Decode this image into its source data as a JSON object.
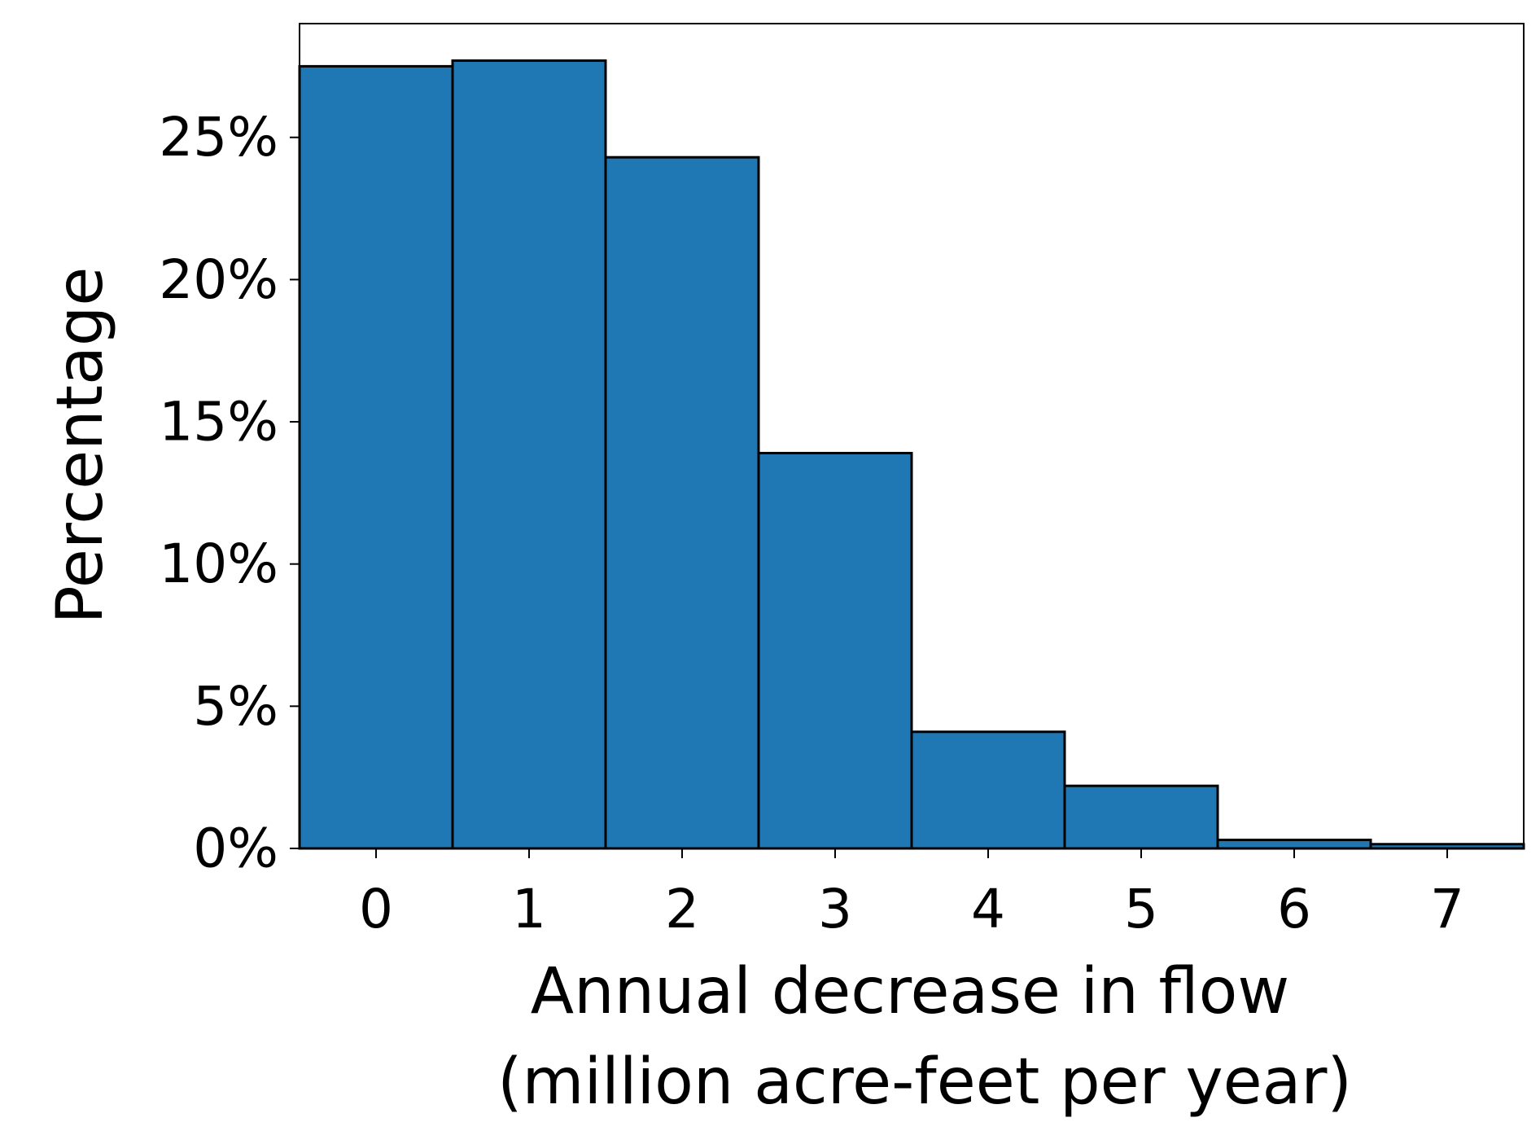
{
  "chart_data": {
    "type": "bar",
    "title": "",
    "xlabel_lines": [
      "Annual decrease in flow",
      "(million acre-feet per year)"
    ],
    "ylabel": "Percentage",
    "categories": [
      0,
      1,
      2,
      3,
      4,
      5,
      6,
      7
    ],
    "values": [
      27.5,
      27.7,
      24.3,
      13.9,
      4.1,
      2.2,
      0.3,
      0.15
    ],
    "value_unit": "%",
    "xlim": [
      -0.5,
      7.5
    ],
    "ylim": [
      0,
      29
    ],
    "yticks": [
      0,
      5,
      10,
      15,
      20,
      25
    ],
    "ytick_labels": [
      "0%",
      "5%",
      "10%",
      "15%",
      "20%",
      "25%"
    ],
    "xtick_labels": [
      "0",
      "1",
      "2",
      "3",
      "4",
      "5",
      "6",
      "7"
    ],
    "bar_color": "#1f77b4",
    "edge_color": "#000000",
    "grid": false,
    "legend": "none"
  }
}
